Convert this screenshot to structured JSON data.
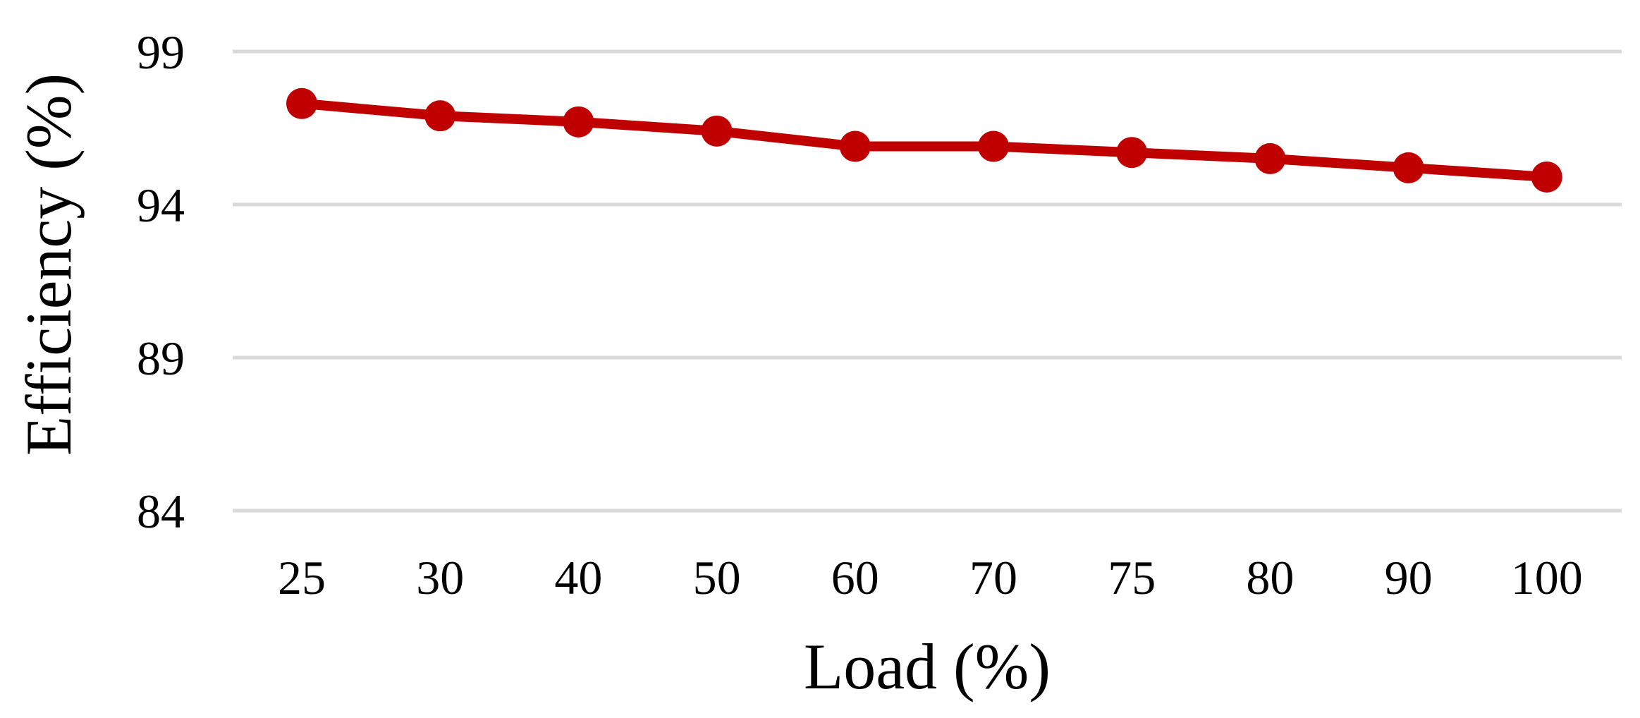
{
  "chart_data": {
    "type": "line",
    "title": "",
    "xlabel": "Load (%)",
    "ylabel": "Efficiency (%)",
    "categories": [
      "25",
      "30",
      "40",
      "50",
      "60",
      "70",
      "75",
      "80",
      "90",
      "100"
    ],
    "series": [
      {
        "values": [
          97.3,
          96.9,
          96.7,
          96.4,
          95.9,
          95.9,
          95.7,
          95.5,
          95.2,
          94.9
        ],
        "color": "#C00000"
      }
    ],
    "yticks": [
      84,
      89,
      94,
      99
    ],
    "ylim": [
      84,
      99
    ],
    "grid": true,
    "grid_color": "#D9D9D9",
    "legend": "none",
    "marker": "circle"
  }
}
